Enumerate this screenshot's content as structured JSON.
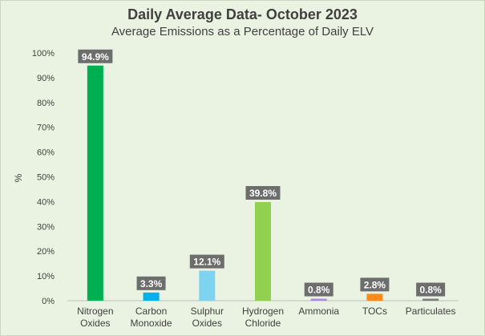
{
  "chart_data": {
    "type": "bar",
    "title": "Daily Average Data- October 2023",
    "subtitle": "Average Emissions as a Percentage of Daily ELV",
    "xlabel": "",
    "ylabel": "%",
    "ylim": [
      0,
      100
    ],
    "yticks": [
      "0%",
      "10%",
      "20%",
      "30%",
      "40%",
      "50%",
      "60%",
      "70%",
      "80%",
      "90%",
      "100%"
    ],
    "grid": false,
    "legend": "none",
    "categories": [
      [
        "Nitrogen",
        "Oxides"
      ],
      [
        "Carbon",
        "Monoxide"
      ],
      [
        "Sulphur",
        "Oxides"
      ],
      [
        "Hydrogen",
        "Chloride"
      ],
      [
        "Ammonia"
      ],
      [
        "TOCs"
      ],
      [
        "Particulates"
      ]
    ],
    "values": [
      94.9,
      3.3,
      12.1,
      39.8,
      0.8,
      2.8,
      0.8
    ],
    "data_labels": [
      "94.9%",
      "3.3%",
      "12.1%",
      "39.8%",
      "0.8%",
      "2.8%",
      "0.8%"
    ],
    "colors": [
      "#00b050",
      "#00b0f0",
      "#7dd3f0",
      "#92d050",
      "#b084f0",
      "#ff8c1a",
      "#7c7c7c"
    ],
    "label_box_color": "#6d6d6d"
  }
}
